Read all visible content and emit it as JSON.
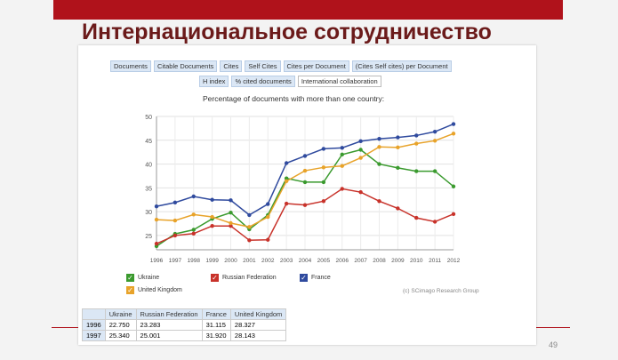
{
  "slide": {
    "title": "Интернациональное сотрудничество",
    "page_number": "49",
    "accent_color": "#b0121b"
  },
  "tabs": {
    "row1": [
      "Documents",
      "Citable Documents",
      "Cites",
      "Self Cites",
      "Cites per Document",
      "(Cites Self cites) per Document"
    ],
    "row2": [
      "H index",
      "% cited documents",
      "International collaboration"
    ],
    "active": "International collaboration"
  },
  "legend_marker": "✓",
  "credit": "(c) SCimago Research Group",
  "chart_data": {
    "type": "line",
    "title": "Percentage of documents with more than one country:",
    "x": [
      "1996",
      "1997",
      "1998",
      "1999",
      "2000",
      "2001",
      "2002",
      "2003",
      "2004",
      "2005",
      "2006",
      "2007",
      "2008",
      "2009",
      "2010",
      "2011",
      "2012"
    ],
    "ylim": [
      22,
      50
    ],
    "yticks": [
      25,
      30,
      35,
      40,
      45,
      50
    ],
    "grid": true,
    "legend_position": "bottom",
    "series": [
      {
        "name": "Ukraine",
        "color": "#3a9a2e",
        "values": [
          22.75,
          25.34,
          26.2,
          28.5,
          29.8,
          26.3,
          29.3,
          37.0,
          36.2,
          36.2,
          42.0,
          43.0,
          40.0,
          39.2,
          38.5,
          38.5,
          35.3
        ]
      },
      {
        "name": "Russian Federation",
        "color": "#c8322a",
        "values": [
          23.283,
          25.001,
          25.4,
          27.0,
          27.0,
          24.0,
          24.1,
          31.7,
          31.4,
          32.2,
          34.8,
          34.1,
          32.2,
          30.7,
          28.7,
          27.9,
          29.5
        ]
      },
      {
        "name": "France",
        "color": "#2f4a9e",
        "values": [
          31.115,
          31.92,
          33.2,
          32.5,
          32.4,
          29.3,
          31.6,
          40.2,
          41.7,
          43.2,
          43.4,
          44.8,
          45.3,
          45.6,
          46.0,
          46.8,
          48.4
        ]
      },
      {
        "name": "United Kingdom",
        "color": "#e8a32a",
        "values": [
          28.327,
          28.143,
          29.4,
          28.9,
          27.6,
          26.8,
          28.9,
          36.4,
          38.6,
          39.3,
          39.6,
          41.3,
          43.6,
          43.5,
          44.3,
          44.9,
          46.4
        ]
      }
    ]
  },
  "table": {
    "headers": [
      "",
      "Ukraine",
      "Russian Federation",
      "France",
      "United Kingdom"
    ],
    "rows": [
      [
        "1996",
        "22.750",
        "23.283",
        "31.115",
        "28.327"
      ],
      [
        "1997",
        "25.340",
        "25.001",
        "31.920",
        "28.143"
      ]
    ]
  }
}
